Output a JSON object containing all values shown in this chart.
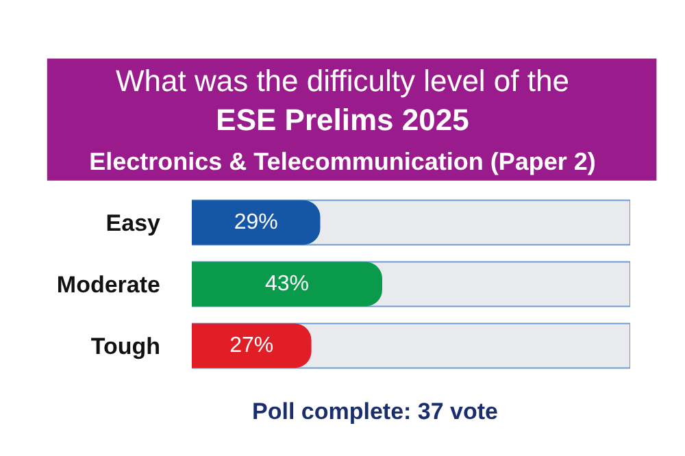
{
  "chart_data": {
    "type": "bar",
    "orientation": "horizontal",
    "title": "What was the difficulty level of the ESE Prelims 2025",
    "subtitle": "Electronics & Telecommunication (Paper 2)",
    "categories": [
      "Easy",
      "Moderate",
      "Tough"
    ],
    "values": [
      29,
      43,
      27
    ],
    "colors": [
      "#1656a6",
      "#0a9a4c",
      "#e11d25"
    ],
    "value_labels": [
      "29%",
      "43%",
      "27%"
    ],
    "legend": false,
    "annotations": [
      "Poll complete: 37 vote"
    ]
  }
}
